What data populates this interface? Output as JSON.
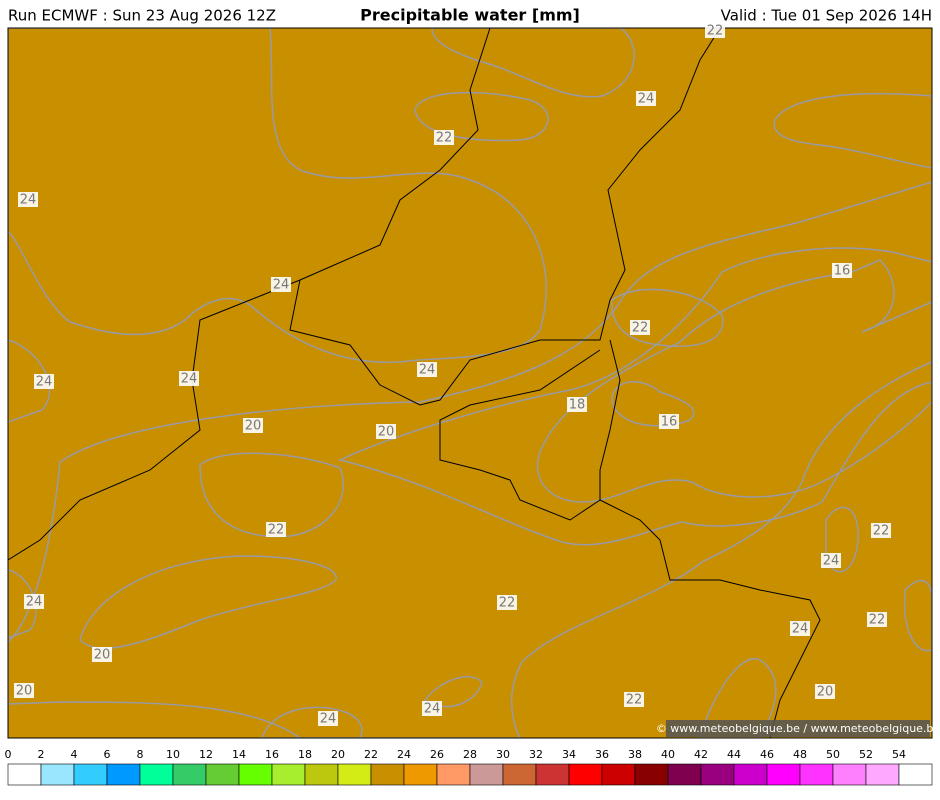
{
  "header": {
    "run": "Run ECMWF : Sun 23 Aug 2026 12Z",
    "title": "Precipitable water [mm]",
    "valid": "Valid : Tue 01 Sep 2026 14H"
  },
  "map": {
    "contour_labels": [
      22,
      24,
      22,
      24,
      16,
      24,
      22,
      24,
      24,
      24,
      18,
      16,
      20,
      20,
      22,
      22,
      24,
      24,
      22,
      22,
      24,
      20,
      20,
      20,
      22,
      24,
      24
    ],
    "copyright": "© www.meteobelgique.be / www.meteobelgique.be"
  },
  "colorbar": {
    "ticks": [
      0,
      2,
      4,
      6,
      8,
      10,
      12,
      14,
      16,
      18,
      20,
      22,
      24,
      26,
      28,
      30,
      32,
      34,
      36,
      38,
      40,
      42,
      44,
      46,
      48,
      50,
      52,
      54
    ],
    "colors": [
      "#ffffff",
      "#99e6ff",
      "#33ccff",
      "#0099ff",
      "#00ff99",
      "#33cc66",
      "#66cc33",
      "#66ff00",
      "#a6ee2e",
      "#bcc80e",
      "#d4ec16",
      "#c89000",
      "#ee9900",
      "#ff9966",
      "#cc9999",
      "#cc6633",
      "#cc3333",
      "#ff0000",
      "#cc0000",
      "#880000",
      "#800050",
      "#990080",
      "#cc00cc",
      "#ff00ff",
      "#ff33ff",
      "#ff80ff",
      "#ffa8ff",
      "#ffffff"
    ]
  }
}
